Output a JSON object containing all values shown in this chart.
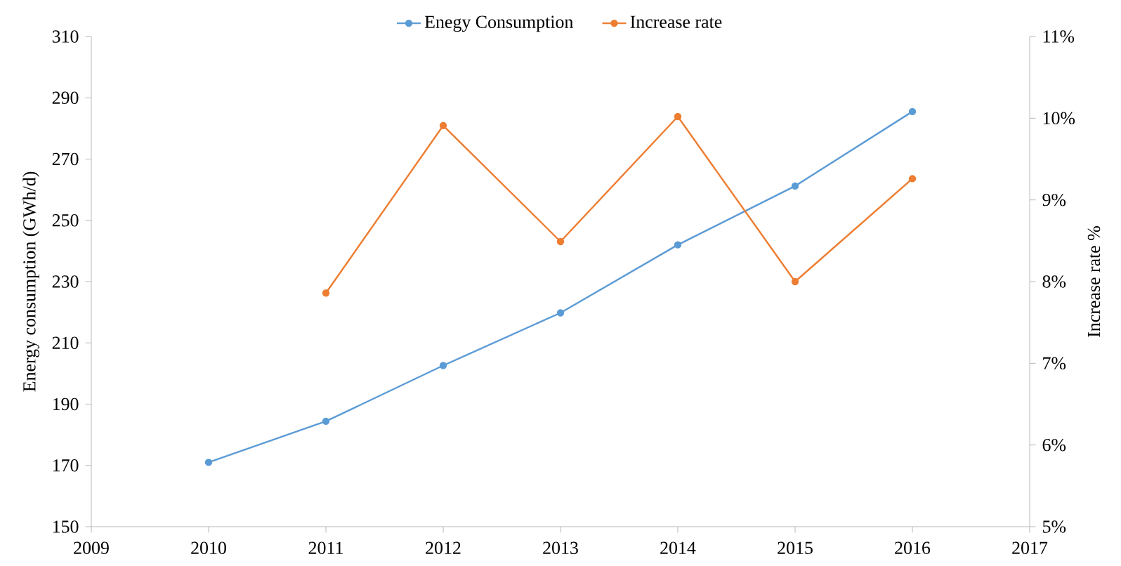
{
  "chart_data": {
    "type": "line",
    "xlabel": null,
    "ylabel": "Energy consumption (GWh/d)",
    "y2label": "Increase rate %",
    "x": [
      2010,
      2011,
      2012,
      2013,
      2014,
      2015,
      2016
    ],
    "series": [
      {
        "name": "Enegy Consumption",
        "color": "#5b9bd5",
        "values": [
          171,
          184.4,
          202.6,
          219.8,
          242,
          261.2,
          285.5
        ]
      },
      {
        "name": "Increase rate",
        "color": "#ed7d31",
        "axis": "y2",
        "values": [
          null,
          7.86,
          9.91,
          8.49,
          10.02,
          8.0,
          9.26
        ]
      }
    ],
    "xlim": [
      2009,
      2017
    ],
    "xticks": [
      2009,
      2010,
      2011,
      2012,
      2013,
      2014,
      2015,
      2016,
      2017
    ],
    "ylim": [
      150,
      310
    ],
    "yticks": [
      150,
      170,
      190,
      210,
      230,
      250,
      270,
      290,
      310
    ],
    "y2lim": [
      5,
      11
    ],
    "y2ticks": [
      {
        "value": 5,
        "label": "5%"
      },
      {
        "value": 6,
        "label": "6%"
      },
      {
        "value": 7,
        "label": "7%"
      },
      {
        "value": 8,
        "label": "8%"
      },
      {
        "value": 9,
        "label": "9%"
      },
      {
        "value": 10,
        "label": "10%"
      },
      {
        "value": 11,
        "label": "11%"
      }
    ],
    "legend": "top",
    "marker": "circle",
    "line_style": "solid",
    "grid": false
  }
}
